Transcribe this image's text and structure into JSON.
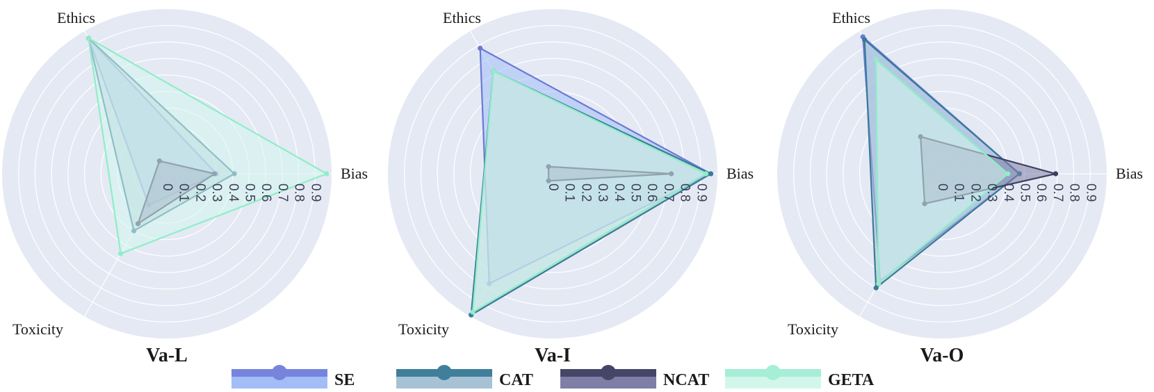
{
  "chart_data": [
    {
      "type": "radar",
      "title": "Va-L",
      "axes": [
        "Bias",
        "Ethics",
        "Toxicity"
      ],
      "ticks": [
        "0",
        "0.1",
        "0.2",
        "0.3",
        "0.4",
        "0.5",
        "0.6",
        "0.7",
        "0.8",
        "0.9"
      ],
      "rlim": [
        0,
        1
      ],
      "series": [
        {
          "name": "SE",
          "values": [
            0.3,
            0.95,
            0.22
          ]
        },
        {
          "name": "CAT",
          "values": [
            0.41,
            0.95,
            0.4
          ]
        },
        {
          "name": "NCAT",
          "values": [
            0.29,
            0.09,
            0.35
          ]
        },
        {
          "name": "GETA",
          "values": [
            0.97,
            0.95,
            0.56
          ]
        }
      ]
    },
    {
      "type": "radar",
      "title": "Va-I",
      "axes": [
        "Bias",
        "Ethics",
        "Toxicity"
      ],
      "ticks": [
        "0",
        "0.1",
        "0.2",
        "0.3",
        "0.4",
        "0.5",
        "0.6",
        "0.7",
        "0.8",
        "0.9"
      ],
      "rlim": [
        0,
        1
      ],
      "series": [
        {
          "name": "SE",
          "values": [
            0.96,
            0.88,
            0.77
          ]
        },
        {
          "name": "CAT",
          "values": [
            0.96,
            0.72,
            0.99
          ]
        },
        {
          "name": "NCAT",
          "values": [
            0.72,
            0.05,
            0.05
          ]
        },
        {
          "name": "GETA",
          "values": [
            0.93,
            0.72,
            0.97
          ]
        }
      ]
    },
    {
      "type": "radar",
      "title": "Va-O",
      "axes": [
        "Bias",
        "Ethics",
        "Toxicity"
      ],
      "ticks": [
        "0",
        "0.1",
        "0.2",
        "0.3",
        "0.4",
        "0.5",
        "0.6",
        "0.7",
        "0.8",
        "0.9"
      ],
      "rlim": [
        0,
        1
      ],
      "series": [
        {
          "name": "SE",
          "values": [
            0.47,
            0.96,
            0.75
          ]
        },
        {
          "name": "CAT",
          "values": [
            0.47,
            0.94,
            0.8
          ]
        },
        {
          "name": "NCAT",
          "values": [
            0.69,
            0.26,
            0.21
          ]
        },
        {
          "name": "GETA",
          "values": [
            0.4,
            0.8,
            0.77
          ]
        }
      ]
    }
  ],
  "legend": [
    {
      "name": "SE",
      "line": "#7684dc",
      "fill": "#a3bdf7",
      "edge": "#6b79d6"
    },
    {
      "name": "CAT",
      "line": "#3f7f9b",
      "fill": "#a7c2d4",
      "edge": "#3b7a97"
    },
    {
      "name": "NCAT",
      "line": "#454567",
      "fill": "#7f7ea6",
      "edge": "#3e3e60"
    },
    {
      "name": "GETA",
      "line": "#a6eed6",
      "fill": "#d3f6ec",
      "edge": "#8eeec7"
    }
  ],
  "colors": {
    "plot_background": "#e5e9f4",
    "grid": "#ffffff"
  }
}
